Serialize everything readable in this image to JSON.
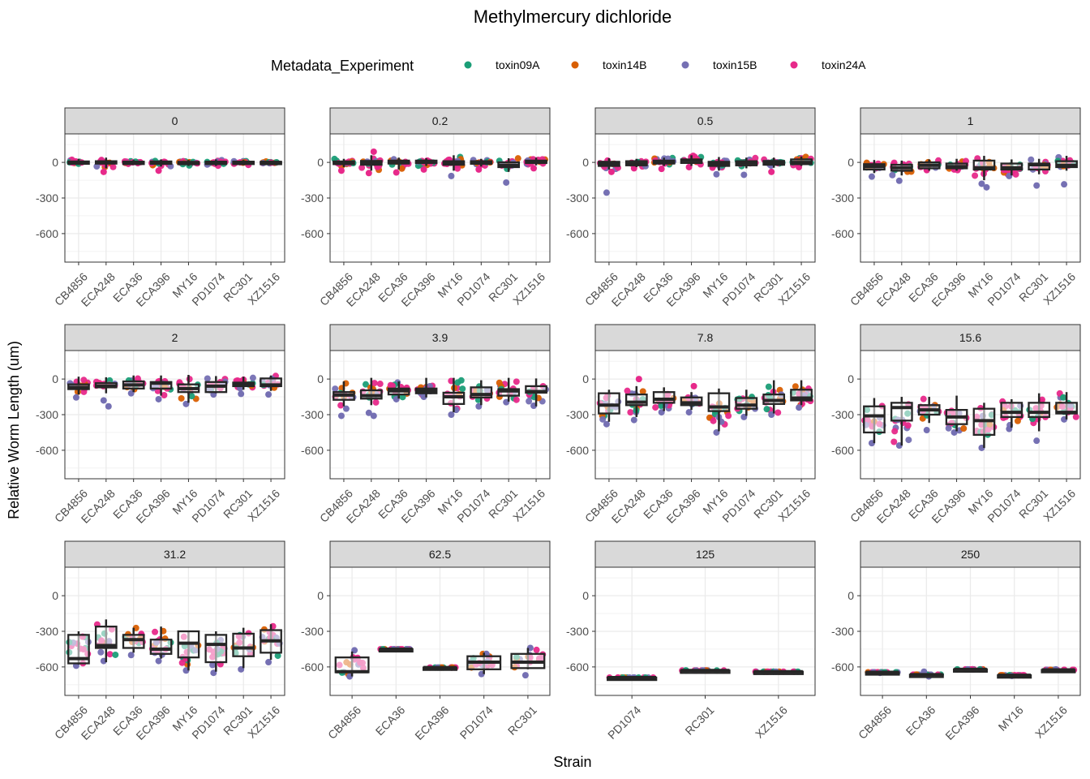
{
  "chart_data": {
    "type": "box",
    "title": "Methylmercury dichloride",
    "xlabel": "Strain",
    "ylabel": "Relative Worm Length (um)",
    "ylim": [
      -840,
      240
    ],
    "yticks": [
      0,
      -300,
      -600
    ],
    "grid": true,
    "legend": {
      "title": "Metadata_Experiment",
      "position": "top",
      "entries": [
        {
          "name": "toxin09A",
          "color": "#1B9E77"
        },
        {
          "name": "toxin14B",
          "color": "#D95F02"
        },
        {
          "name": "toxin15B",
          "color": "#7570B3"
        },
        {
          "name": "toxin24A",
          "color": "#E7298A"
        }
      ]
    },
    "facets": [
      {
        "label": "0",
        "strains": [
          "CB4856",
          "ECA248",
          "ECA36",
          "ECA396",
          "MY16",
          "PD1074",
          "RC301",
          "XZ1516"
        ],
        "boxes": [
          [
            -20,
            -8,
            0,
            8,
            30
          ],
          [
            -50,
            -10,
            0,
            10,
            40
          ],
          [
            -20,
            -8,
            0,
            6,
            20
          ],
          [
            -35,
            -8,
            0,
            8,
            25
          ],
          [
            -30,
            -10,
            -3,
            5,
            20
          ],
          [
            -30,
            -8,
            0,
            6,
            25
          ],
          [
            -25,
            -6,
            0,
            6,
            20
          ],
          [
            -20,
            -6,
            0,
            5,
            15
          ]
        ],
        "outliers": [
          [],
          [
            -80
          ],
          [],
          [
            -70
          ],
          [],
          [],
          [],
          []
        ]
      },
      {
        "label": "0.2",
        "strains": [
          "CB4856",
          "ECA248",
          "ECA36",
          "ECA396",
          "MY16",
          "PD1074",
          "RC301",
          "XZ1516"
        ],
        "boxes": [
          [
            -40,
            -15,
            -3,
            8,
            30
          ],
          [
            -70,
            -20,
            0,
            12,
            60
          ],
          [
            -60,
            -10,
            3,
            15,
            40
          ],
          [
            -30,
            -3,
            5,
            15,
            35
          ],
          [
            -70,
            -20,
            -8,
            10,
            60
          ],
          [
            -35,
            -12,
            0,
            10,
            30
          ],
          [
            -80,
            -40,
            -25,
            0,
            35
          ],
          [
            -25,
            0,
            8,
            15,
            40
          ]
        ],
        "outliers": [
          [
            -70
          ],
          [
            -90,
            90
          ],
          [
            -85
          ],
          [
            -60
          ],
          [
            -115
          ],
          [
            -60
          ],
          [
            -170
          ],
          [
            -50
          ]
        ]
      },
      {
        "label": "0.5",
        "strains": [
          "CB4856",
          "ECA248",
          "ECA36",
          "ECA396",
          "MY16",
          "PD1074",
          "RC301",
          "XZ1516"
        ],
        "boxes": [
          [
            -60,
            -30,
            -15,
            5,
            35
          ],
          [
            -40,
            -25,
            -10,
            10,
            30
          ],
          [
            -30,
            -10,
            0,
            15,
            40
          ],
          [
            -30,
            -5,
            15,
            25,
            60
          ],
          [
            -70,
            -30,
            -15,
            5,
            45
          ],
          [
            -50,
            -25,
            -5,
            10,
            40
          ],
          [
            -45,
            -20,
            0,
            12,
            40
          ],
          [
            -30,
            -15,
            0,
            25,
            50
          ]
        ],
        "outliers": [
          [
            -255,
            -80
          ],
          [
            -50
          ],
          [
            -55
          ],
          [
            -40
          ],
          [
            -100
          ],
          [
            -105
          ],
          [
            -80
          ],
          [
            -40
          ]
        ]
      },
      {
        "label": "1",
        "strains": [
          "CB4856",
          "ECA248",
          "ECA36",
          "ECA396",
          "MY16",
          "PD1074",
          "RC301",
          "XZ1516"
        ],
        "boxes": [
          [
            -90,
            -60,
            -35,
            -15,
            20
          ],
          [
            -110,
            -70,
            -45,
            -20,
            15
          ],
          [
            -70,
            -50,
            -25,
            0,
            25
          ],
          [
            -70,
            -50,
            -35,
            -10,
            30
          ],
          [
            -150,
            -60,
            -45,
            15,
            55
          ],
          [
            -110,
            -60,
            -45,
            -10,
            25
          ],
          [
            -100,
            -60,
            -20,
            -10,
            30
          ],
          [
            -70,
            -40,
            -25,
            10,
            55
          ]
        ],
        "outliers": [
          [
            -120
          ],
          [
            -155
          ],
          [
            -65
          ],
          [
            -60
          ],
          [
            -180,
            -210
          ],
          [
            -115
          ],
          [
            -195
          ],
          [
            -185
          ]
        ]
      },
      {
        "label": "2",
        "strains": [
          "CB4856",
          "ECA248",
          "ECA36",
          "ECA396",
          "MY16",
          "PD1074",
          "RC301",
          "XZ1516"
        ],
        "boxes": [
          [
            -130,
            -85,
            -70,
            -45,
            20
          ],
          [
            -120,
            -70,
            -60,
            -35,
            15
          ],
          [
            -110,
            -80,
            -50,
            -20,
            30
          ],
          [
            -140,
            -80,
            -35,
            -25,
            30
          ],
          [
            -200,
            -110,
            -80,
            -45,
            35
          ],
          [
            -120,
            -110,
            -60,
            -25,
            25
          ],
          [
            -90,
            -60,
            -45,
            -30,
            20
          ],
          [
            -100,
            -60,
            -50,
            5,
            30
          ]
        ],
        "outliers": [
          [
            -155
          ],
          [
            -180,
            -230
          ],
          [
            -120
          ],
          [
            -170
          ],
          [
            -210
          ],
          [
            -130
          ],
          [
            -125
          ],
          [
            -130
          ]
        ]
      },
      {
        "label": "3.9",
        "strains": [
          "CB4856",
          "ECA248",
          "ECA36",
          "ECA396",
          "MY16",
          "PD1074",
          "RC301",
          "XZ1516"
        ],
        "boxes": [
          [
            -230,
            -175,
            -135,
            -110,
            -20
          ],
          [
            -220,
            -165,
            -140,
            -95,
            10
          ],
          [
            -165,
            -130,
            -100,
            -80,
            -20
          ],
          [
            -155,
            -120,
            -100,
            -80,
            10
          ],
          [
            -280,
            -210,
            -150,
            -115,
            10
          ],
          [
            -220,
            -155,
            -130,
            -70,
            -10
          ],
          [
            -190,
            -140,
            -100,
            -85,
            10
          ],
          [
            -230,
            -115,
            -105,
            -60,
            5
          ]
        ],
        "outliers": [
          [
            -310,
            -250
          ],
          [
            -285,
            -310
          ],
          [
            -170
          ],
          [
            -150
          ],
          [
            -300,
            -260
          ],
          [
            -230
          ],
          [
            -195
          ],
          [
            -225
          ]
        ]
      },
      {
        "label": "7.8",
        "strains": [
          "CB4856",
          "ECA248",
          "ECA36",
          "ECA396",
          "MY16",
          "PD1074",
          "RC301",
          "XZ1516"
        ],
        "boxes": [
          [
            -360,
            -290,
            -220,
            -120,
            -90
          ],
          [
            -320,
            -220,
            -195,
            -130,
            -60
          ],
          [
            -270,
            -200,
            -170,
            -110,
            -70
          ],
          [
            -260,
            -220,
            -200,
            -155,
            -110
          ],
          [
            -440,
            -270,
            -235,
            -120,
            -80
          ],
          [
            -310,
            -250,
            -220,
            -160,
            -90
          ],
          [
            -290,
            -210,
            -180,
            -130,
            -10
          ],
          [
            -220,
            -180,
            -160,
            -90,
            -10
          ]
        ],
        "outliers": [
          [
            -380
          ],
          [
            -345,
            0
          ],
          [
            -280
          ],
          [
            -280,
            -60
          ],
          [
            -450,
            -360
          ],
          [
            -320
          ],
          [
            -300
          ],
          [
            -240
          ]
        ]
      },
      {
        "label": "15.6",
        "strains": [
          "CB4856",
          "ECA248",
          "ECA36",
          "ECA396",
          "MY16",
          "PD1074",
          "RC301",
          "XZ1516"
        ],
        "boxes": [
          [
            -540,
            -450,
            -310,
            -230,
            -160
          ],
          [
            -560,
            -350,
            -240,
            -200,
            -150
          ],
          [
            -370,
            -300,
            -260,
            -220,
            -150
          ],
          [
            -440,
            -380,
            -320,
            -260,
            -140
          ],
          [
            -580,
            -470,
            -350,
            -250,
            -200
          ],
          [
            -410,
            -320,
            -280,
            -200,
            -170
          ],
          [
            -440,
            -320,
            -280,
            -200,
            -120
          ],
          [
            -340,
            -290,
            -280,
            -200,
            -110
          ]
        ],
        "outliers": [
          [
            -540
          ],
          [
            -560
          ],
          [
            -430
          ],
          [
            -450
          ],
          [
            -580
          ],
          [
            -420
          ],
          [
            -520
          ],
          [
            -340
          ]
        ]
      },
      {
        "label": "31.2",
        "strains": [
          "CB4856",
          "ECA248",
          "ECA36",
          "ECA396",
          "MY16",
          "PD1074",
          "RC301",
          "XZ1516"
        ],
        "boxes": [
          [
            -580,
            -570,
            -530,
            -330,
            -300
          ],
          [
            -560,
            -440,
            -420,
            -260,
            -200
          ],
          [
            -480,
            -440,
            -370,
            -330,
            -270
          ],
          [
            -530,
            -490,
            -450,
            -370,
            -260
          ],
          [
            -630,
            -520,
            -400,
            -300,
            -300
          ],
          [
            -640,
            -560,
            -410,
            -330,
            -300
          ],
          [
            -610,
            -510,
            -440,
            -320,
            -270
          ],
          [
            -540,
            -480,
            -380,
            -290,
            -240
          ]
        ],
        "outliers": [
          [
            -590
          ],
          [
            -550
          ],
          [
            -500
          ],
          [
            -550
          ],
          [
            -630
          ],
          [
            -650
          ],
          [
            -620
          ],
          [
            -560
          ]
        ]
      },
      {
        "label": "62.5",
        "strains": [
          "CB4856",
          "ECA36",
          "ECA396",
          "PD1074",
          "RC301"
        ],
        "boxes": [
          [
            -680,
            -645,
            -640,
            -520,
            -470
          ],
          [
            -450,
            -450,
            -450,
            -450,
            -450
          ],
          [
            -605,
            -605,
            -605,
            -605,
            -605
          ],
          [
            -660,
            -620,
            -560,
            -510,
            -480
          ],
          [
            -620,
            -610,
            -560,
            -490,
            -440
          ]
        ],
        "outliers": [
          [
            -680,
            -460
          ],
          [
            -450
          ],
          [
            -605
          ],
          [
            -660,
            -490
          ],
          [
            -670,
            -440
          ]
        ]
      },
      {
        "label": "125",
        "strains": [
          "PD1074",
          "RC301",
          "XZ1516"
        ],
        "boxes": [
          [
            -690,
            -690,
            -690,
            -690,
            -690
          ],
          [
            -630,
            -630,
            -630,
            -630,
            -630
          ],
          [
            -640,
            -640,
            -640,
            -640,
            -640
          ]
        ],
        "outliers": [
          [
            -690
          ],
          [
            -630
          ],
          [
            -640
          ]
        ]
      },
      {
        "label": "250",
        "strains": [
          "CB4856",
          "ECA36",
          "ECA396",
          "MY16",
          "XZ1516"
        ],
        "boxes": [
          [
            -645,
            -645,
            -645,
            -645,
            -645
          ],
          [
            -665,
            -665,
            -665,
            -665,
            -665
          ],
          [
            -620,
            -620,
            -620,
            -620,
            -620
          ],
          [
            -670,
            -670,
            -670,
            -670,
            -670
          ],
          [
            -625,
            -625,
            -625,
            -625,
            -625
          ]
        ],
        "outliers": [
          [
            -650
          ],
          [
            -640,
            -680
          ],
          [
            -620
          ],
          [
            -675
          ],
          [
            -620
          ]
        ]
      }
    ]
  }
}
